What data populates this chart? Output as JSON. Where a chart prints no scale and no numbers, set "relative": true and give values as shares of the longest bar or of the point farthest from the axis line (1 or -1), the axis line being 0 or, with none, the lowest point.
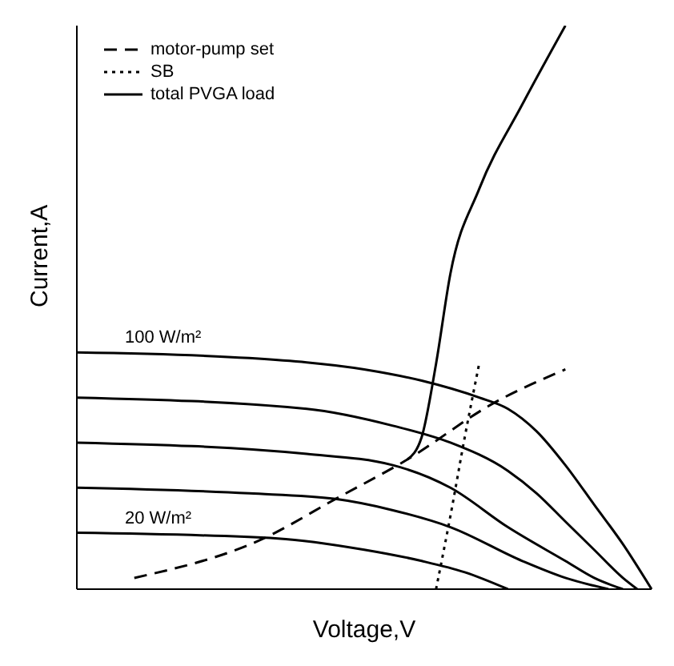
{
  "chart_data": {
    "type": "line",
    "relative": true,
    "xlabel": "Voltage,V",
    "ylabel": "Current,A",
    "legend": "top left",
    "marker": "none",
    "categories": [
      null,
      null,
      null,
      null,
      null,
      null,
      null,
      null,
      null,
      null,
      null,
      null,
      null,
      null,
      null,
      null,
      null,
      null,
      null,
      null,
      null,
      null,
      null,
      null,
      null,
      null,
      null,
      null,
      null,
      null,
      null,
      null,
      null,
      null,
      null,
      null,
      null,
      null,
      null,
      null,
      null
    ],
    "series": [
      {
        "color": "#000000",
        "line_style": "solid",
        "values": [
          0.42,
          null,
          null,
          null,
          null,
          null,
          null,
          null,
          null,
          null,
          null,
          null,
          0.41,
          null,
          null,
          null,
          null,
          null,
          null,
          null,
          0.39,
          null,
          null,
          null,
          0.37,
          null,
          null,
          null,
          0.34,
          null,
          0.32,
          null,
          0.28,
          null,
          0.22,
          null,
          0.15,
          null,
          0.08,
          null,
          0
        ]
      },
      {
        "color": "#000000",
        "line_style": "solid",
        "values": [
          0.34,
          null,
          null,
          null,
          null,
          null,
          null,
          null,
          null,
          null,
          null,
          null,
          null,
          null,
          null,
          null,
          0.32,
          null,
          null,
          null,
          null,
          null,
          0.29,
          null,
          null,
          null,
          0.26,
          null,
          null,
          null,
          0.21,
          null,
          0.17,
          null,
          0.12,
          null,
          0.07,
          null,
          0.02,
          0,
          null
        ]
      },
      {
        "color": "#000000",
        "line_style": "solid",
        "values": [
          0.26,
          null,
          null,
          null,
          null,
          null,
          null,
          null,
          null,
          null,
          null,
          null,
          null,
          null,
          null,
          null,
          0.24,
          null,
          null,
          null,
          null,
          null,
          0.22,
          null,
          null,
          null,
          0.18,
          null,
          null,
          null,
          0.11,
          null,
          null,
          null,
          0.05,
          null,
          0.02,
          null,
          0,
          null,
          null
        ]
      },
      {
        "color": "#000000",
        "line_style": "solid",
        "values": [
          0.18,
          null,
          null,
          null,
          null,
          null,
          null,
          null,
          null,
          null,
          null,
          null,
          0.17,
          null,
          null,
          null,
          null,
          null,
          0.16,
          null,
          null,
          null,
          0.14,
          null,
          null,
          null,
          0.11,
          null,
          null,
          null,
          null,
          0.05,
          null,
          null,
          0.02,
          null,
          null,
          0,
          null,
          null,
          null
        ]
      },
      {
        "color": "#000000",
        "line_style": "solid",
        "values": [
          0.1,
          null,
          null,
          null,
          null,
          null,
          null,
          null,
          null,
          null,
          null,
          null,
          null,
          null,
          0.09,
          null,
          null,
          null,
          null,
          null,
          0.07,
          null,
          null,
          null,
          0.05,
          null,
          null,
          0.03,
          null,
          null,
          0,
          null,
          null,
          null,
          null,
          null,
          null,
          null,
          null,
          null,
          null
        ]
      },
      {
        "name": "motor-pump set",
        "color": "#000000",
        "line_style": "dashed",
        "values": [
          null,
          null,
          null,
          null,
          0.02,
          null,
          null,
          null,
          null,
          null,
          null,
          null,
          null,
          0.09,
          null,
          null,
          null,
          null,
          0.16,
          null,
          null,
          null,
          null,
          0.23,
          null,
          null,
          null,
          null,
          null,
          0.33,
          null,
          null,
          null,
          null,
          0.39,
          null,
          null,
          null,
          null,
          null,
          null
        ]
      },
      {
        "name": "SB",
        "color": "#000000",
        "line_style": "dotted",
        "values": [
          null,
          null,
          null,
          null,
          null,
          null,
          null,
          null,
          null,
          null,
          null,
          null,
          null,
          null,
          null,
          null,
          null,
          null,
          null,
          null,
          null,
          null,
          null,
          null,
          null,
          0,
          0.13,
          0.27,
          0.4,
          null,
          null,
          null,
          null,
          null,
          null,
          null,
          null,
          null,
          null,
          null,
          null
        ]
      },
      {
        "name": "total PVGA load",
        "color": "#000000",
        "line_style": "solid",
        "values": [
          null,
          null,
          null,
          null,
          null,
          null,
          null,
          null,
          null,
          null,
          null,
          null,
          null,
          null,
          null,
          null,
          null,
          null,
          null,
          null,
          null,
          null,
          null,
          0.23,
          0.27,
          0.4,
          0.56,
          null,
          0.71,
          null,
          null,
          0.86,
          null,
          null,
          1,
          null,
          null,
          null,
          null,
          null,
          null
        ]
      }
    ],
    "annotations": [
      "100 W/m²",
      "20 W/m²"
    ]
  }
}
